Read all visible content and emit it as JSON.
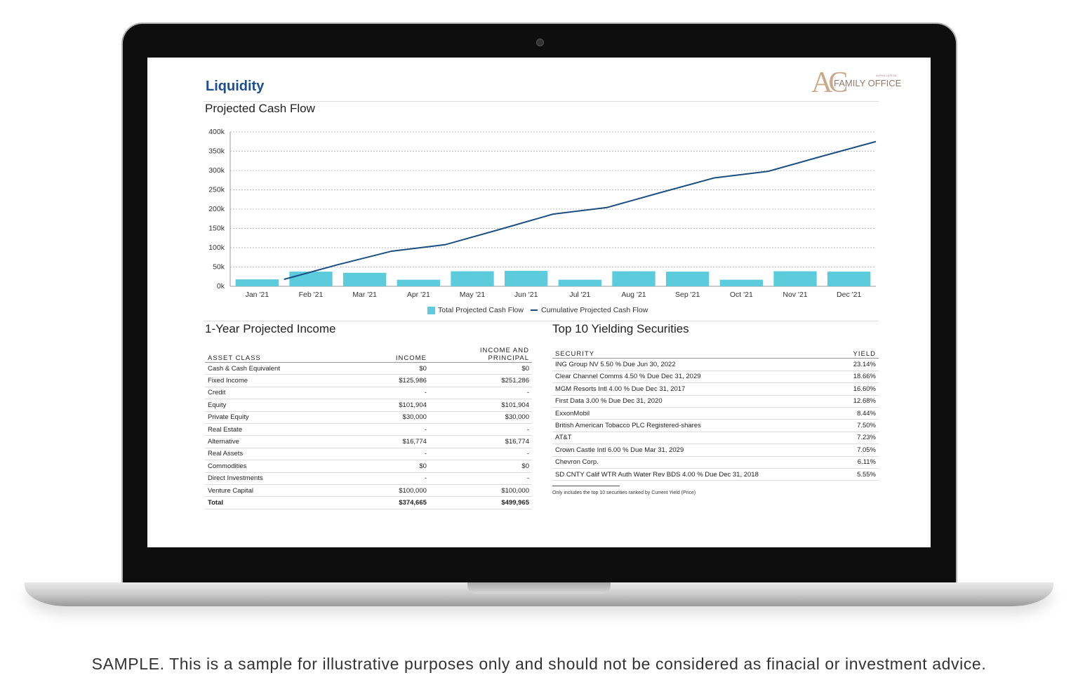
{
  "header": {
    "title": "Liquidity",
    "logo_mark": "AC",
    "logo_small": "ALPHA CAPITAL",
    "logo_name": "FAMILY OFFICE"
  },
  "chart_data": {
    "type": "bar",
    "title": "Projected Cash Flow",
    "categories": [
      "Jan '21",
      "Feb '21",
      "Mar '21",
      "Apr '21",
      "May '21",
      "Jun '21",
      "Jul '21",
      "Aug '21",
      "Sep '21",
      "Oct '21",
      "Nov '21",
      "Dec '21"
    ],
    "series": [
      {
        "name": "Total Projected Cash Flow",
        "type": "bar",
        "color": "#5ccbdc",
        "values": [
          18000,
          38000,
          35000,
          17000,
          39000,
          40000,
          17000,
          39000,
          38000,
          17000,
          39000,
          38000
        ]
      },
      {
        "name": "Cumulative Projected Cash Flow",
        "type": "line",
        "color": "#1b4f82",
        "values": [
          18000,
          56000,
          91000,
          108000,
          147000,
          187000,
          204000,
          243000,
          281000,
          298000,
          337000,
          375000
        ]
      }
    ],
    "ylim": [
      0,
      400000
    ],
    "yticks": [
      {
        "value": 0,
        "label": "0k"
      },
      {
        "value": 50000,
        "label": "50k"
      },
      {
        "value": 100000,
        "label": "100k"
      },
      {
        "value": 150000,
        "label": "150k"
      },
      {
        "value": 200000,
        "label": "200k"
      },
      {
        "value": 250000,
        "label": "250k"
      },
      {
        "value": 300000,
        "label": "300k"
      },
      {
        "value": 350000,
        "label": "350k"
      },
      {
        "value": 400000,
        "label": "400k"
      }
    ],
    "grid": true,
    "legend": "bottom"
  },
  "income": {
    "title": "1-Year Projected Income",
    "columns": [
      "ASSET CLASS",
      "INCOME",
      "INCOME AND PRINCIPAL"
    ],
    "rows": [
      [
        "Cash & Cash Equivalent",
        "$0",
        "$0"
      ],
      [
        "Fixed Income",
        "$125,986",
        "$251,286"
      ],
      [
        "Credit",
        "-",
        "-"
      ],
      [
        "Equity",
        "$101,904",
        "$101,904"
      ],
      [
        "Private Equity",
        "$30,000",
        "$30,000"
      ],
      [
        "Real Estate",
        "-",
        "-"
      ],
      [
        "Alternative",
        "$16,774",
        "$16,774"
      ],
      [
        "Real Assets",
        "-",
        "-"
      ],
      [
        "Commodities",
        "$0",
        "$0"
      ],
      [
        "Direct Investments",
        "-",
        "-"
      ],
      [
        "Venture Capital",
        "$100,000",
        "$100,000"
      ]
    ],
    "total": [
      "Total",
      "$374,665",
      "$499,965"
    ]
  },
  "securities": {
    "title": "Top 10 Yielding Securities",
    "columns": [
      "SECURITY",
      "YIELD"
    ],
    "rows": [
      [
        "ING Group NV 5.50 % Due Jun 30, 2022",
        "23.14%"
      ],
      [
        "Clear Channel Comms 4.50 % Due Dec 31, 2029",
        "18.66%"
      ],
      [
        "MGM Resorts Intl 4.00 % Due Dec 31, 2017",
        "16.60%"
      ],
      [
        "First Data 3.00 % Due Dec 31, 2020",
        "12.68%"
      ],
      [
        "ExxonMobil",
        "8.44%"
      ],
      [
        "British American Tobacco PLC Registered-shares",
        "7.50%"
      ],
      [
        "AT&T",
        "7.23%"
      ],
      [
        "Crown Castle Intl 6.00 % Due Mar 31, 2029",
        "7.05%"
      ],
      [
        "Chevron Corp.",
        "6.11%"
      ],
      [
        "SD CNTY Calif WTR Auth Water Rev BDS 4.00 % Due Dec 31, 2018",
        "5.55%"
      ]
    ],
    "footnote": "Only includes the top 10 securities ranked by Current Yield (Price)"
  },
  "disclaimer": "SAMPLE. This is a sample for illustrative purposes only and should not be considered as finacial or investment advice."
}
